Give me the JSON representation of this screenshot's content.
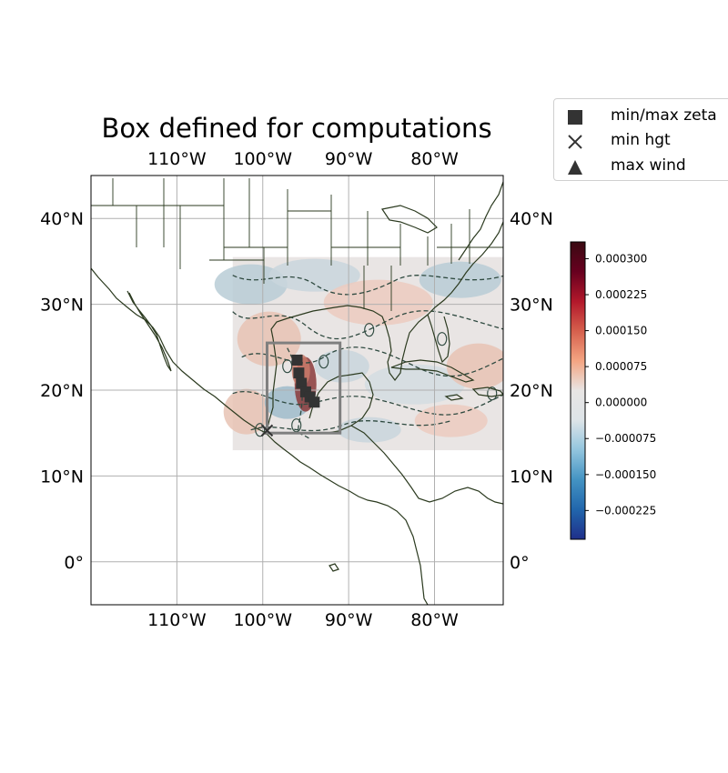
{
  "title": "Box defined for computations",
  "map": {
    "lon_range": [
      -120,
      -72
    ],
    "lat_range": [
      -5,
      45
    ],
    "gridlines": true,
    "lon_ticks": [
      {
        "value": -110,
        "label": "110°W"
      },
      {
        "value": -100,
        "label": "100°W"
      },
      {
        "value": -90,
        "label": "90°W"
      },
      {
        "value": -80,
        "label": "80°W"
      }
    ],
    "lat_ticks": [
      {
        "value": 40,
        "label": "40°N"
      },
      {
        "value": 30,
        "label": "30°N"
      },
      {
        "value": 20,
        "label": "20°N"
      },
      {
        "value": 10,
        "label": "10°N"
      },
      {
        "value": 0,
        "label": "0°"
      }
    ],
    "data_field": {
      "lon_range": [
        -103.5,
        -72
      ],
      "lat_range": [
        13,
        35.5
      ],
      "contours": "dashed"
    },
    "computation_box": {
      "lon_range": [
        -99.5,
        -91
      ],
      "lat_range": [
        15,
        25.5
      ],
      "color": "#7f7f7f"
    },
    "track_points": [
      {
        "lon": -96.0,
        "lat": 23.5
      },
      {
        "lon": -95.8,
        "lat": 22.0
      },
      {
        "lon": -95.5,
        "lat": 20.8
      },
      {
        "lon": -95.0,
        "lat": 19.8
      },
      {
        "lon": -94.5,
        "lat": 19.2
      },
      {
        "lon": -94.0,
        "lat": 18.6
      },
      {
        "lon": -99.5,
        "lat": 15.3
      }
    ]
  },
  "colorbar": {
    "range": [
      -0.000285,
      0.000335
    ],
    "ticks": [
      "0.000300",
      "0.000225",
      "0.000150",
      "0.000075",
      "0.000000",
      "−0.000075",
      "−0.000150",
      "−0.000225"
    ],
    "tick_values": [
      0.0003,
      0.000225,
      0.00015,
      7.5e-05,
      0.0,
      -7.5e-05,
      -0.00015,
      -0.000225
    ],
    "colors": [
      "#1f2f8a",
      "#2166ac",
      "#4393c3",
      "#92c5de",
      "#dde4e8",
      "#e8e5e4",
      "#f4a582",
      "#d6604d",
      "#b2182b",
      "#67001f",
      "#3a0a12"
    ]
  },
  "legend": {
    "items": [
      {
        "symbol": "square",
        "label": "min/max zeta"
      },
      {
        "symbol": "x",
        "label": "min hgt"
      },
      {
        "symbol": "triangle",
        "label": "max wind"
      }
    ]
  },
  "colors": {
    "coast": "#2b3a1f",
    "grid": "#b0b0b0",
    "box": "#7f7f7f",
    "marker": "#333333"
  }
}
